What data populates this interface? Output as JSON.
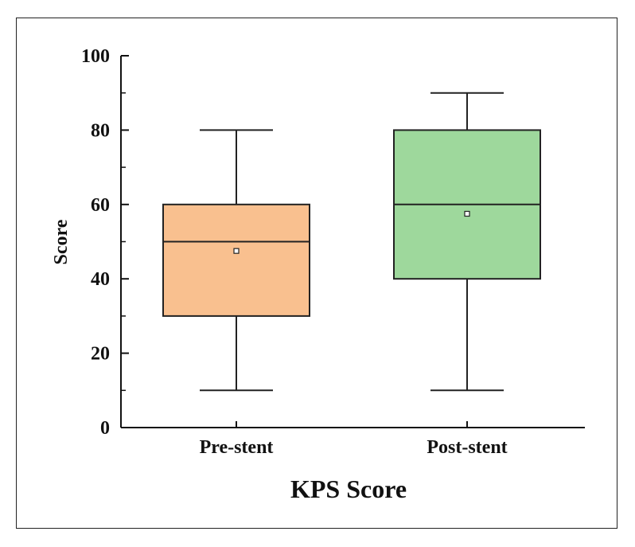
{
  "chart_data": {
    "type": "box",
    "xlabel": "KPS Score",
    "ylabel": "Score",
    "ylim": [
      0,
      100
    ],
    "yticks": [
      0,
      20,
      40,
      60,
      80,
      100
    ],
    "grid": false,
    "categories": [
      "Pre-stent",
      "Post-stent"
    ],
    "boxes": [
      {
        "category": "Pre-stent",
        "min": 10,
        "q1": 30,
        "median": 50,
        "q3": 60,
        "max": 80,
        "mean": 47.5,
        "color": "#f9c08f"
      },
      {
        "category": "Post-stent",
        "min": 10,
        "q1": 40,
        "median": 60,
        "q3": 80,
        "max": 90,
        "mean": 57.5,
        "color": "#9ed89c"
      }
    ]
  }
}
